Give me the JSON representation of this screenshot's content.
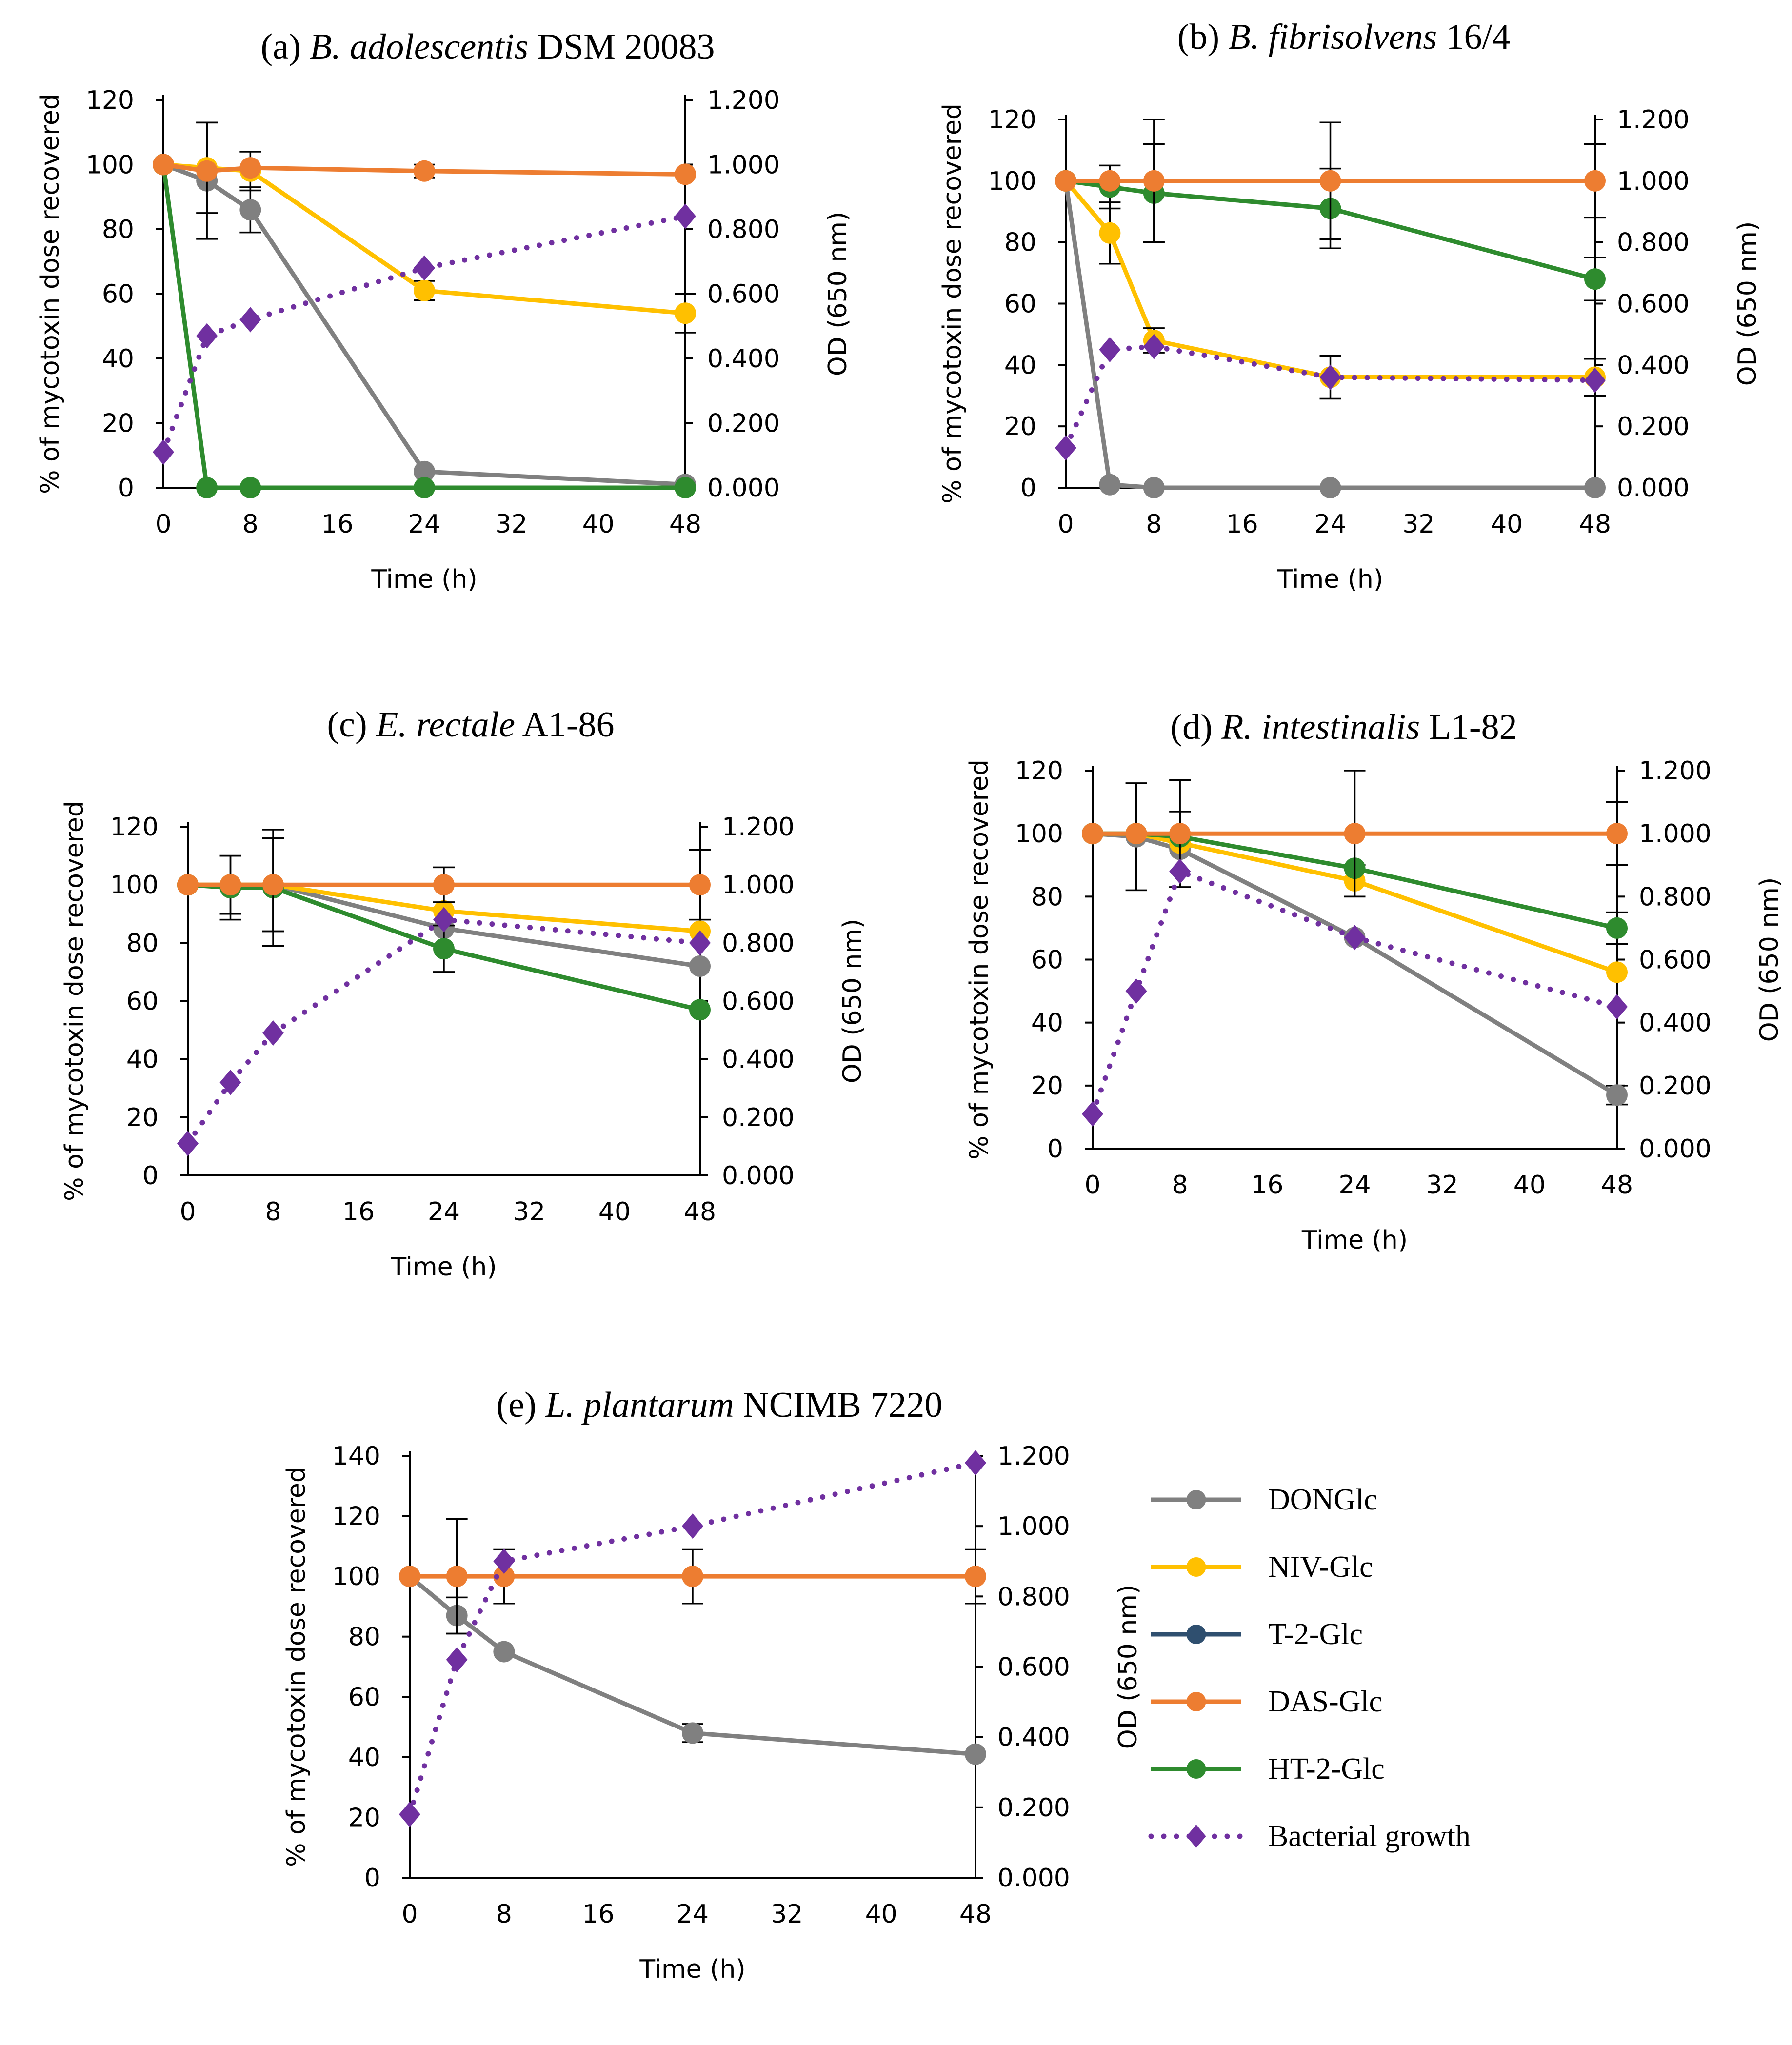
{
  "figure": {
    "legend_title": ""
  },
  "legend": {
    "items": [
      {
        "key": "DONGlc",
        "label": "DONGlc",
        "color": "#808080",
        "style": "solid-circle"
      },
      {
        "key": "NIV",
        "label": "NIV-Glc",
        "color": "#FFC000",
        "style": "solid-circle"
      },
      {
        "key": "T2",
        "label": "T-2-Glc",
        "color": "#2F4F6F",
        "style": "solid-circle"
      },
      {
        "key": "DAS",
        "label": "DAS-Glc",
        "color": "#ED7D31",
        "style": "solid-circle"
      },
      {
        "key": "HT2",
        "label": "HT-2-Glc",
        "color": "#2E8B2E",
        "style": "solid-circle"
      },
      {
        "key": "growth",
        "label": "Bacterial growth",
        "color": "#7030A0",
        "style": "dotted-diamond"
      }
    ]
  },
  "chart_data": [
    {
      "type": "line",
      "title_prefix": "(a) ",
      "title_italic": "B. adolescentis",
      "title_suffix": " DSM 20083",
      "xlabel": "Time (h)",
      "ylabel": "% of mycotoxin dose recovered",
      "y2label": "OD (650 nm)",
      "x_ticks": [
        "0",
        "8",
        "16",
        "24",
        "32",
        "40",
        "48"
      ],
      "xlim": [
        0,
        48
      ],
      "ylim": [
        0,
        120
      ],
      "y_ticks": [
        "0",
        "20",
        "40",
        "60",
        "80",
        "100",
        "120"
      ],
      "y2lim": [
        0,
        1.2
      ],
      "y2_ticks": [
        "0.000",
        "0.200",
        "0.400",
        "0.600",
        "0.800",
        "1.000",
        "1.200"
      ],
      "series": [
        {
          "key": "DONGlc",
          "x": [
            0,
            4,
            8,
            24,
            48
          ],
          "values": [
            100,
            95,
            86,
            5,
            1
          ],
          "err": [
            0,
            18,
            7,
            0,
            0
          ]
        },
        {
          "key": "NIV",
          "x": [
            0,
            4,
            8,
            24,
            48
          ],
          "values": [
            100,
            99,
            98,
            61,
            54
          ],
          "err": [
            0,
            14,
            6,
            3,
            6
          ]
        },
        {
          "key": "HT2",
          "x": [
            0,
            4,
            8,
            24,
            48
          ],
          "values": [
            100,
            0,
            0,
            0,
            0
          ],
          "err": [
            0,
            0,
            0,
            0,
            0
          ]
        },
        {
          "key": "DAS",
          "x": [
            0,
            4,
            8,
            24,
            48
          ],
          "values": [
            100,
            98,
            99,
            98,
            97
          ],
          "err": [
            0,
            0,
            0,
            2,
            0
          ]
        },
        {
          "key": "growth",
          "axis": "y2",
          "x": [
            0,
            4,
            8,
            24,
            48
          ],
          "values": [
            0.11,
            0.47,
            0.52,
            0.68,
            0.84
          ]
        }
      ]
    },
    {
      "type": "line",
      "title_prefix": "(b) ",
      "title_italic": "B. fibrisolvens",
      "title_suffix": " 16/4",
      "xlabel": "Time (h)",
      "ylabel": "% of mycotoxin dose recovered",
      "y2label": "OD (650 nm)",
      "x_ticks": [
        "0",
        "8",
        "16",
        "24",
        "32",
        "40",
        "48"
      ],
      "xlim": [
        0,
        48
      ],
      "ylim": [
        0,
        120
      ],
      "y_ticks": [
        "0",
        "20",
        "40",
        "60",
        "80",
        "100",
        "120"
      ],
      "y2lim": [
        0,
        1.2
      ],
      "y2_ticks": [
        "0.000",
        "0.200",
        "0.400",
        "0.600",
        "0.800",
        "1.000",
        "1.200"
      ],
      "series": [
        {
          "key": "DONGlc",
          "x": [
            0,
            4,
            8,
            24,
            48
          ],
          "values": [
            100,
            1,
            0,
            0,
            0
          ],
          "err": [
            0,
            0,
            0,
            0,
            0
          ]
        },
        {
          "key": "NIV",
          "x": [
            0,
            4,
            8,
            24,
            48
          ],
          "values": [
            100,
            83,
            48,
            36,
            36
          ],
          "err": [
            0,
            10,
            4,
            7,
            6
          ]
        },
        {
          "key": "HT2",
          "x": [
            0,
            4,
            8,
            24,
            48
          ],
          "values": [
            100,
            98,
            96,
            91,
            68
          ],
          "err": [
            0,
            7,
            16,
            13,
            7
          ]
        },
        {
          "key": "DAS",
          "x": [
            0,
            4,
            8,
            24,
            48
          ],
          "values": [
            100,
            100,
            100,
            100,
            100
          ],
          "err": [
            0,
            0,
            20,
            19,
            12
          ]
        },
        {
          "key": "growth",
          "axis": "y2",
          "x": [
            0,
            4,
            8,
            24,
            48
          ],
          "values": [
            0.13,
            0.45,
            0.46,
            0.36,
            0.35
          ]
        }
      ]
    },
    {
      "type": "line",
      "title_prefix": "(c) ",
      "title_italic": "E. rectale",
      "title_suffix": " A1-86",
      "xlabel": "Time (h)",
      "ylabel": "% of mycotoxin dose recovered",
      "y2label": "OD (650 nm)",
      "x_ticks": [
        "0",
        "8",
        "16",
        "24",
        "32",
        "40",
        "48"
      ],
      "xlim": [
        0,
        48
      ],
      "ylim": [
        0,
        120
      ],
      "y_ticks": [
        "0",
        "20",
        "40",
        "60",
        "80",
        "100",
        "120"
      ],
      "y2lim": [
        0,
        1.2
      ],
      "y2_ticks": [
        "0.000",
        "0.200",
        "0.400",
        "0.600",
        "0.800",
        "1.000",
        "1.200"
      ],
      "series": [
        {
          "key": "DONGlc",
          "x": [
            0,
            4,
            8,
            24,
            48
          ],
          "values": [
            100,
            100,
            100,
            85,
            72
          ],
          "err": [
            0,
            10,
            16,
            0,
            0
          ]
        },
        {
          "key": "NIV",
          "x": [
            0,
            4,
            8,
            24,
            48
          ],
          "values": [
            100,
            100,
            100,
            91,
            84
          ],
          "err": [
            0,
            0,
            0,
            0,
            0
          ]
        },
        {
          "key": "HT2",
          "x": [
            0,
            4,
            8,
            24,
            48
          ],
          "values": [
            100,
            99,
            99,
            78,
            57
          ],
          "err": [
            0,
            11,
            20,
            8,
            0
          ]
        },
        {
          "key": "DAS",
          "x": [
            0,
            4,
            8,
            24,
            48
          ],
          "values": [
            100,
            100,
            100,
            100,
            100
          ],
          "err": [
            0,
            0,
            16,
            6,
            12
          ]
        },
        {
          "key": "growth",
          "axis": "y2",
          "x": [
            0,
            4,
            8,
            24,
            48
          ],
          "values": [
            0.11,
            0.32,
            0.49,
            0.88,
            0.8
          ]
        }
      ]
    },
    {
      "type": "line",
      "title_prefix": "(d) ",
      "title_italic": "R. intestinalis",
      "title_suffix": " L1-82",
      "xlabel": "Time (h)",
      "ylabel": "% of mycotoxin dose recovered",
      "y2label": "OD (650 nm)",
      "x_ticks": [
        "0",
        "8",
        "16",
        "24",
        "32",
        "40",
        "48"
      ],
      "xlim": [
        0,
        48
      ],
      "ylim": [
        0,
        120
      ],
      "y_ticks": [
        "0",
        "20",
        "40",
        "60",
        "80",
        "100",
        "120"
      ],
      "y2lim": [
        0,
        1.2
      ],
      "y2_ticks": [
        "0.000",
        "0.200",
        "0.400",
        "0.600",
        "0.800",
        "1.000",
        "1.200"
      ],
      "series": [
        {
          "key": "DONGlc",
          "x": [
            0,
            4,
            8,
            24,
            48
          ],
          "values": [
            100,
            99,
            95,
            67,
            17
          ],
          "err": [
            0,
            17,
            12,
            0,
            3
          ]
        },
        {
          "key": "NIV",
          "x": [
            0,
            4,
            8,
            24,
            48
          ],
          "values": [
            100,
            100,
            97,
            85,
            56
          ],
          "err": [
            0,
            0,
            0,
            5,
            0
          ]
        },
        {
          "key": "HT2",
          "x": [
            0,
            4,
            8,
            24,
            48
          ],
          "values": [
            100,
            100,
            99,
            89,
            70
          ],
          "err": [
            0,
            0,
            0,
            0,
            5
          ]
        },
        {
          "key": "DAS",
          "x": [
            0,
            4,
            8,
            24,
            48
          ],
          "values": [
            100,
            100,
            100,
            100,
            100
          ],
          "err": [
            0,
            0,
            17,
            20,
            10
          ]
        },
        {
          "key": "growth",
          "axis": "y2",
          "x": [
            0,
            4,
            8,
            24,
            48
          ],
          "values": [
            0.11,
            0.5,
            0.88,
            0.67,
            0.45
          ]
        }
      ]
    },
    {
      "type": "line",
      "title_prefix": "(e) ",
      "title_italic": "L. plantarum",
      "title_suffix": " NCIMB 7220",
      "xlabel": "Time (h)",
      "ylabel": "% of mycotoxin dose recovered",
      "y2label": "OD (650 nm)",
      "x_ticks": [
        "0",
        "8",
        "16",
        "24",
        "32",
        "40",
        "48"
      ],
      "xlim": [
        0,
        48
      ],
      "ylim": [
        0,
        140
      ],
      "y_ticks": [
        "0",
        "20",
        "40",
        "60",
        "80",
        "100",
        "120",
        "140"
      ],
      "y2lim": [
        0,
        1.2
      ],
      "y2_ticks": [
        "0.000",
        "0.200",
        "0.400",
        "0.600",
        "0.800",
        "1.000",
        "1.200"
      ],
      "series": [
        {
          "key": "DONGlc",
          "x": [
            0,
            4,
            8,
            24,
            48
          ],
          "values": [
            100,
            87,
            75,
            48,
            41
          ],
          "err": [
            0,
            6,
            0,
            3,
            0
          ]
        },
        {
          "key": "DAS",
          "x": [
            0,
            4,
            8,
            24,
            48
          ],
          "values": [
            100,
            100,
            100,
            100,
            100
          ],
          "err": [
            0,
            19,
            9,
            9,
            9
          ]
        },
        {
          "key": "growth",
          "axis": "y2",
          "x": [
            0,
            4,
            8,
            24,
            48
          ],
          "values": [
            0.18,
            0.62,
            0.9,
            1.0,
            1.18
          ]
        }
      ]
    }
  ]
}
